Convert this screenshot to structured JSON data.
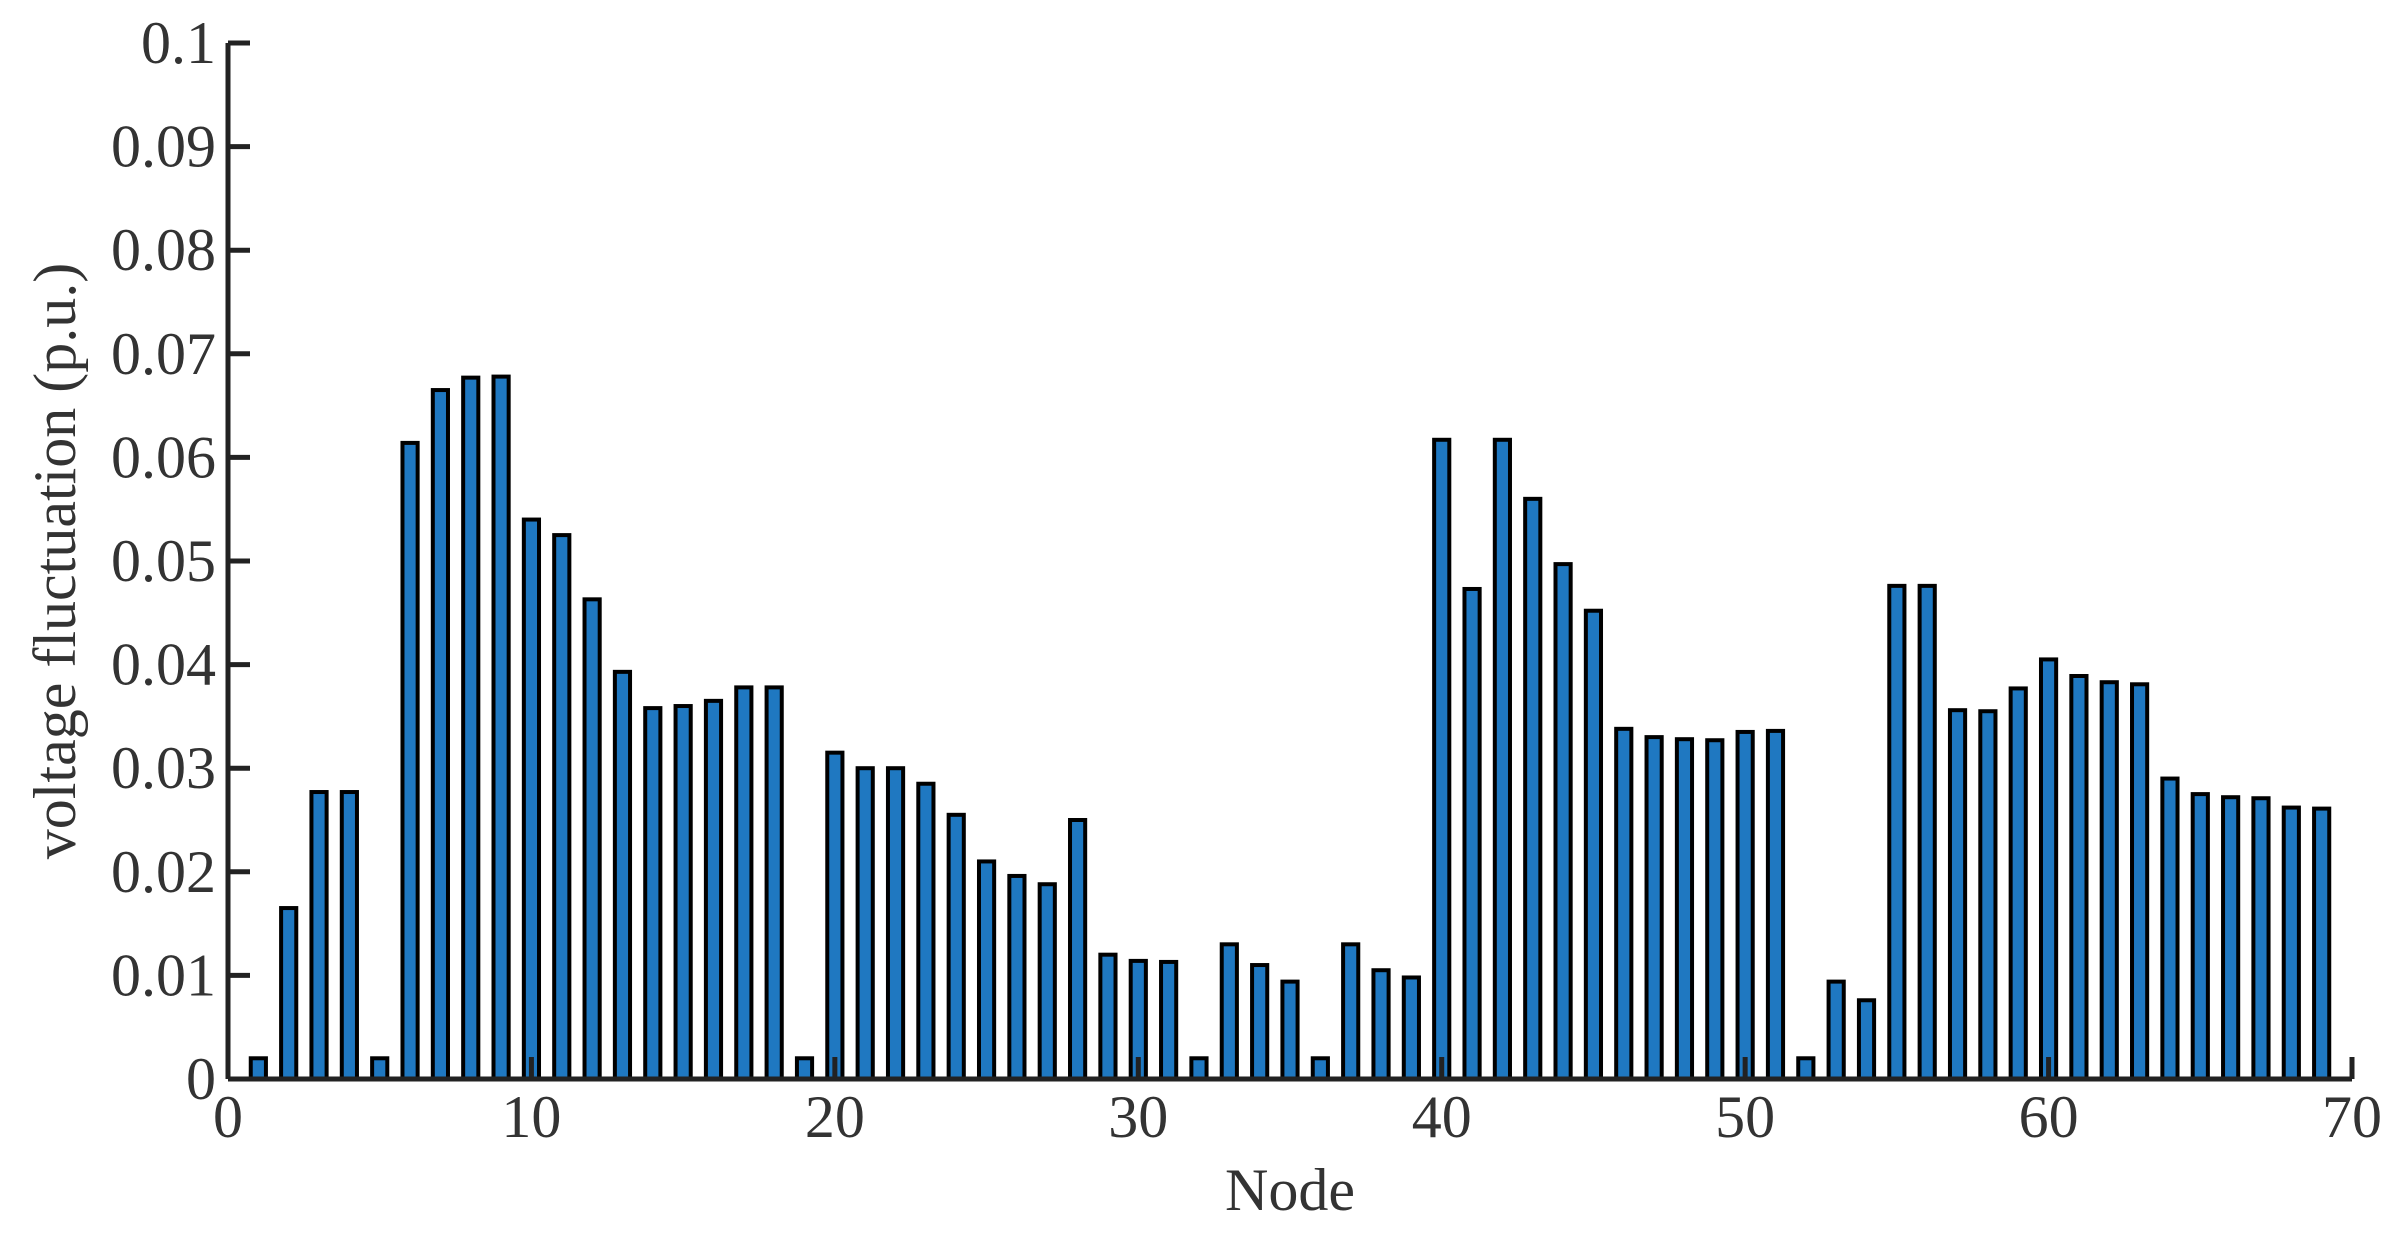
{
  "chart_data": {
    "type": "bar",
    "xlabel": "Node",
    "ylabel": "voltage fluctuation (p.u.)",
    "x": [
      1,
      2,
      3,
      4,
      5,
      6,
      7,
      8,
      9,
      10,
      11,
      12,
      13,
      14,
      15,
      16,
      17,
      18,
      19,
      20,
      21,
      22,
      23,
      24,
      25,
      26,
      27,
      28,
      29,
      30,
      31,
      32,
      33,
      34,
      35,
      36,
      37,
      38,
      39,
      40,
      41,
      42,
      43,
      44,
      45,
      46,
      47,
      48,
      49,
      50,
      51,
      52,
      53,
      54,
      55,
      56,
      57,
      58,
      59,
      60,
      61,
      62,
      63,
      64,
      65,
      66,
      67,
      68,
      69
    ],
    "values": [
      0.002,
      0.0165,
      0.0277,
      0.0277,
      0.002,
      0.0614,
      0.0665,
      0.0677,
      0.0678,
      0.054,
      0.0525,
      0.0463,
      0.0393,
      0.0358,
      0.036,
      0.0365,
      0.0378,
      0.0378,
      0.002,
      0.0315,
      0.03,
      0.03,
      0.0285,
      0.0255,
      0.021,
      0.0196,
      0.0188,
      0.025,
      0.012,
      0.0114,
      0.0113,
      0.002,
      0.013,
      0.011,
      0.0094,
      0.002,
      0.013,
      0.0105,
      0.0098,
      0.0617,
      0.0473,
      0.0617,
      0.056,
      0.0497,
      0.0452,
      0.0338,
      0.033,
      0.0328,
      0.0327,
      0.0335,
      0.0336,
      0.002,
      0.0094,
      0.0076,
      0.0476,
      0.0476,
      0.0356,
      0.0355,
      0.0377,
      0.0405,
      0.0389,
      0.0383,
      0.0381,
      0.029,
      0.0275,
      0.0272,
      0.0271,
      0.0262,
      0.0261
    ],
    "color": "#1f78c1",
    "edgecolor": "#000000",
    "xlim": [
      0,
      70
    ],
    "xticks": [
      0,
      10,
      20,
      30,
      40,
      50,
      60,
      70
    ],
    "ylim": [
      0,
      0.1
    ],
    "yticks": [
      0,
      0.01,
      0.02,
      0.03,
      0.04,
      0.05,
      0.06,
      0.07,
      0.08,
      0.09,
      0.1
    ],
    "grid": false
  }
}
